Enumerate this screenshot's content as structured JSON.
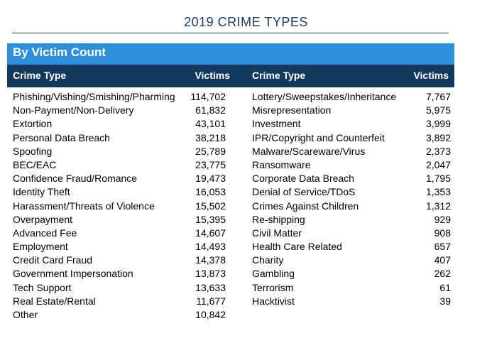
{
  "title": "2019 CRIME TYPES",
  "section": "By Victim Count",
  "headers": {
    "crime_type_left": "Crime Type",
    "victims_left": "Victims",
    "crime_type_right": "Crime Type",
    "victims_right": "Victims"
  },
  "rows": [
    {
      "left_type": "Phishing/Vishing/Smishing/Pharming",
      "left_victims": "114,702",
      "right_type": "Lottery/Sweepstakes/Inheritance",
      "right_victims": "7,767"
    },
    {
      "left_type": "Non-Payment/Non-Delivery",
      "left_victims": "61,832",
      "right_type": "Misrepresentation",
      "right_victims": "5,975"
    },
    {
      "left_type": "Extortion",
      "left_victims": "43,101",
      "right_type": "Investment",
      "right_victims": "3,999"
    },
    {
      "left_type": "Personal Data Breach",
      "left_victims": "38,218",
      "right_type": "IPR/Copyright and Counterfeit",
      "right_victims": "3,892"
    },
    {
      "left_type": "Spoofing",
      "left_victims": "25,789",
      "right_type": "Malware/Scareware/Virus",
      "right_victims": "2,373"
    },
    {
      "left_type": "BEC/EAC",
      "left_victims": "23,775",
      "right_type": "Ransomware",
      "right_victims": "2,047"
    },
    {
      "left_type": "Confidence Fraud/Romance",
      "left_victims": "19,473",
      "right_type": "Corporate Data Breach",
      "right_victims": "1,795"
    },
    {
      "left_type": "Identity Theft",
      "left_victims": "16,053",
      "right_type": "Denial of Service/TDoS",
      "right_victims": "1,353"
    },
    {
      "left_type": "Harassment/Threats of Violence",
      "left_victims": "15,502",
      "right_type": "Crimes Against Children",
      "right_victims": "1,312"
    },
    {
      "left_type": "Overpayment",
      "left_victims": "15,395",
      "right_type": "Re-shipping",
      "right_victims": "929"
    },
    {
      "left_type": "Advanced Fee",
      "left_victims": "14,607",
      "right_type": "Civil Matter",
      "right_victims": "908"
    },
    {
      "left_type": "Employment",
      "left_victims": "14,493",
      "right_type": "Health Care Related",
      "right_victims": "657"
    },
    {
      "left_type": "Credit Card Fraud",
      "left_victims": "14,378",
      "right_type": "Charity",
      "right_victims": "407"
    },
    {
      "left_type": "Government Impersonation",
      "left_victims": "13,873",
      "right_type": "Gambling",
      "right_victims": "262"
    },
    {
      "left_type": "Tech Support",
      "left_victims": "13,633",
      "right_type": "Terrorism",
      "right_victims": "61"
    },
    {
      "left_type": "Real Estate/Rental",
      "left_victims": "11,677",
      "right_type": "Hacktivist",
      "right_victims": "39"
    },
    {
      "left_type": "Other",
      "left_victims": "10,842",
      "right_type": "",
      "right_victims": ""
    }
  ]
}
